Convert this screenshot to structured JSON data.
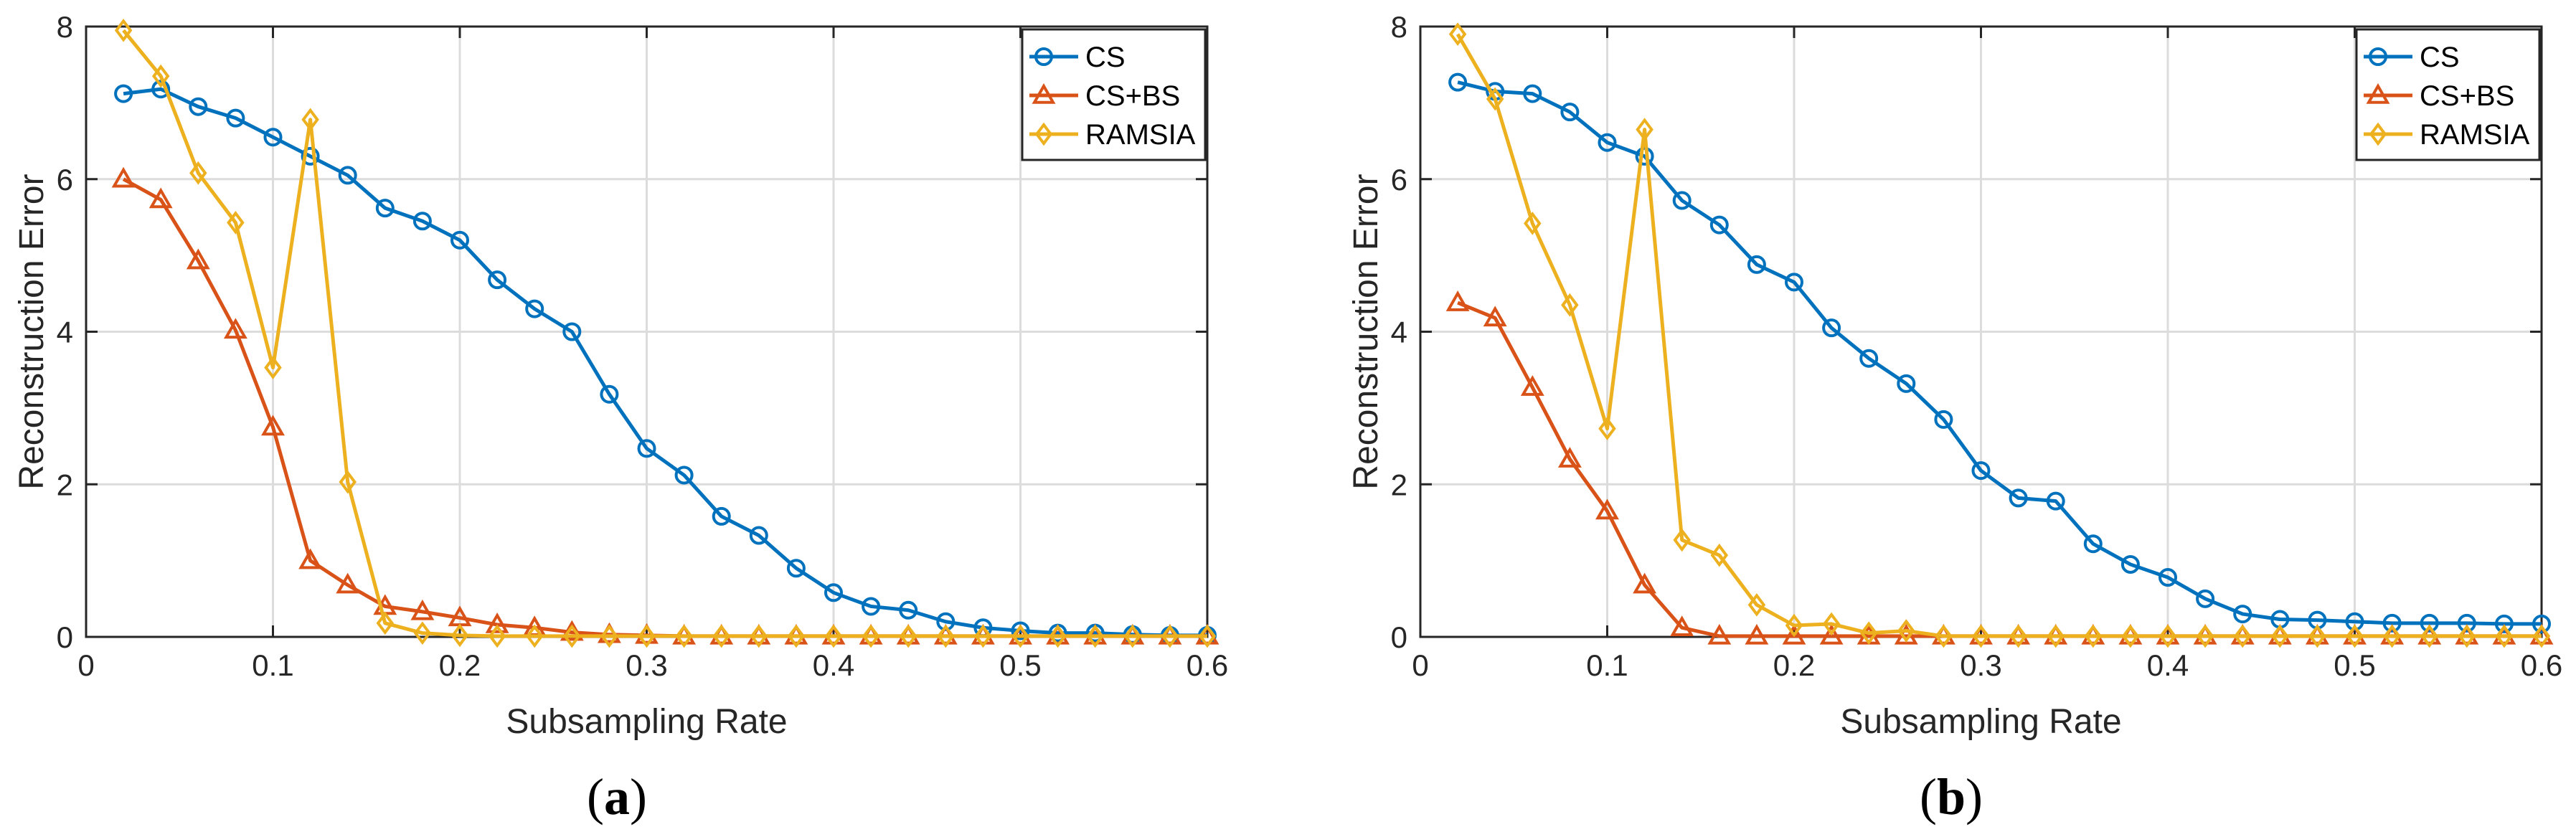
{
  "chart_data": [
    {
      "type": "line",
      "panel_label": "a",
      "xlabel": "Subsampling Rate",
      "ylabel": "Reconstruction Error",
      "xlim": [
        0,
        0.6
      ],
      "ylim": [
        0,
        8
      ],
      "xticks": [
        "0",
        "0.1",
        "0.2",
        "0.3",
        "0.4",
        "0.5",
        "0.6"
      ],
      "yticks": [
        "0",
        "2",
        "4",
        "6",
        "8"
      ],
      "grid": true,
      "legend_position": "top-right",
      "x": [
        0.02,
        0.04,
        0.06,
        0.08,
        0.1,
        0.12,
        0.14,
        0.16,
        0.18,
        0.2,
        0.22,
        0.24,
        0.26,
        0.28,
        0.3,
        0.32,
        0.34,
        0.36,
        0.38,
        0.4,
        0.42,
        0.44,
        0.46,
        0.48,
        0.5,
        0.52,
        0.54,
        0.56,
        0.58,
        0.6
      ],
      "series": [
        {
          "name": "CS",
          "color": "#0072BD",
          "marker": "circle",
          "values": [
            7.12,
            7.18,
            6.95,
            6.8,
            6.55,
            6.3,
            6.05,
            5.62,
            5.45,
            5.2,
            4.68,
            4.3,
            4.0,
            3.18,
            2.47,
            2.12,
            1.58,
            1.33,
            0.9,
            0.58,
            0.4,
            0.35,
            0.2,
            0.12,
            0.08,
            0.05,
            0.05,
            0.03,
            0.02,
            0.02
          ]
        },
        {
          "name": "CS+BS",
          "color": "#D95319",
          "marker": "triangle",
          "values": [
            6.0,
            5.73,
            4.93,
            4.02,
            2.75,
            1.0,
            0.68,
            0.4,
            0.33,
            0.25,
            0.16,
            0.12,
            0.06,
            0.03,
            0.02,
            0.01,
            0.01,
            0.01,
            0.01,
            0.01,
            0.01,
            0.01,
            0.01,
            0.01,
            0.01,
            0.01,
            0.01,
            0.01,
            0.01,
            0.01
          ]
        },
        {
          "name": "RAMSIA",
          "color": "#EDB120",
          "marker": "diamond",
          "values": [
            7.95,
            7.35,
            6.08,
            5.43,
            3.53,
            6.78,
            2.03,
            0.18,
            0.05,
            0.02,
            0.01,
            0.01,
            0.01,
            0.01,
            0.01,
            0.01,
            0.01,
            0.01,
            0.01,
            0.01,
            0.01,
            0.01,
            0.01,
            0.01,
            0.01,
            0.01,
            0.01,
            0.01,
            0.01,
            0.01
          ]
        }
      ]
    },
    {
      "type": "line",
      "panel_label": "b",
      "xlabel": "Subsampling Rate",
      "ylabel": "Reconstruction Error",
      "xlim": [
        0,
        0.6
      ],
      "ylim": [
        0,
        8
      ],
      "xticks": [
        "0",
        "0.1",
        "0.2",
        "0.3",
        "0.4",
        "0.5",
        "0.6"
      ],
      "yticks": [
        "0",
        "2",
        "4",
        "6",
        "8"
      ],
      "grid": true,
      "legend_position": "top-right",
      "x": [
        0.02,
        0.04,
        0.06,
        0.08,
        0.1,
        0.12,
        0.14,
        0.16,
        0.18,
        0.2,
        0.22,
        0.24,
        0.26,
        0.28,
        0.3,
        0.32,
        0.34,
        0.36,
        0.38,
        0.4,
        0.42,
        0.44,
        0.46,
        0.48,
        0.5,
        0.52,
        0.54,
        0.56,
        0.58,
        0.6
      ],
      "series": [
        {
          "name": "CS",
          "color": "#0072BD",
          "marker": "circle",
          "values": [
            7.27,
            7.15,
            7.12,
            6.88,
            6.48,
            6.3,
            5.72,
            5.4,
            4.88,
            4.65,
            4.05,
            3.65,
            3.32,
            2.85,
            2.18,
            1.82,
            1.78,
            1.22,
            0.95,
            0.78,
            0.5,
            0.3,
            0.23,
            0.22,
            0.2,
            0.18,
            0.18,
            0.18,
            0.17,
            0.17
          ]
        },
        {
          "name": "CS+BS",
          "color": "#D95319",
          "marker": "triangle",
          "values": [
            4.38,
            4.18,
            3.27,
            2.33,
            1.65,
            0.68,
            0.12,
            0.01,
            0.01,
            0.01,
            0.01,
            0.01,
            0.01,
            0.01,
            0.01,
            0.01,
            0.01,
            0.01,
            0.01,
            0.01,
            0.01,
            0.01,
            0.01,
            0.01,
            0.01,
            0.01,
            0.01,
            0.01,
            0.01,
            0.01
          ]
        },
        {
          "name": "RAMSIA",
          "color": "#EDB120",
          "marker": "diamond",
          "values": [
            7.9,
            7.05,
            5.42,
            4.35,
            2.73,
            6.65,
            1.27,
            1.07,
            0.42,
            0.15,
            0.17,
            0.05,
            0.08,
            0.01,
            0.01,
            0.01,
            0.01,
            0.01,
            0.01,
            0.01,
            0.01,
            0.01,
            0.01,
            0.01,
            0.01,
            0.01,
            0.01,
            0.01,
            0.01,
            0.01
          ]
        }
      ]
    }
  ]
}
